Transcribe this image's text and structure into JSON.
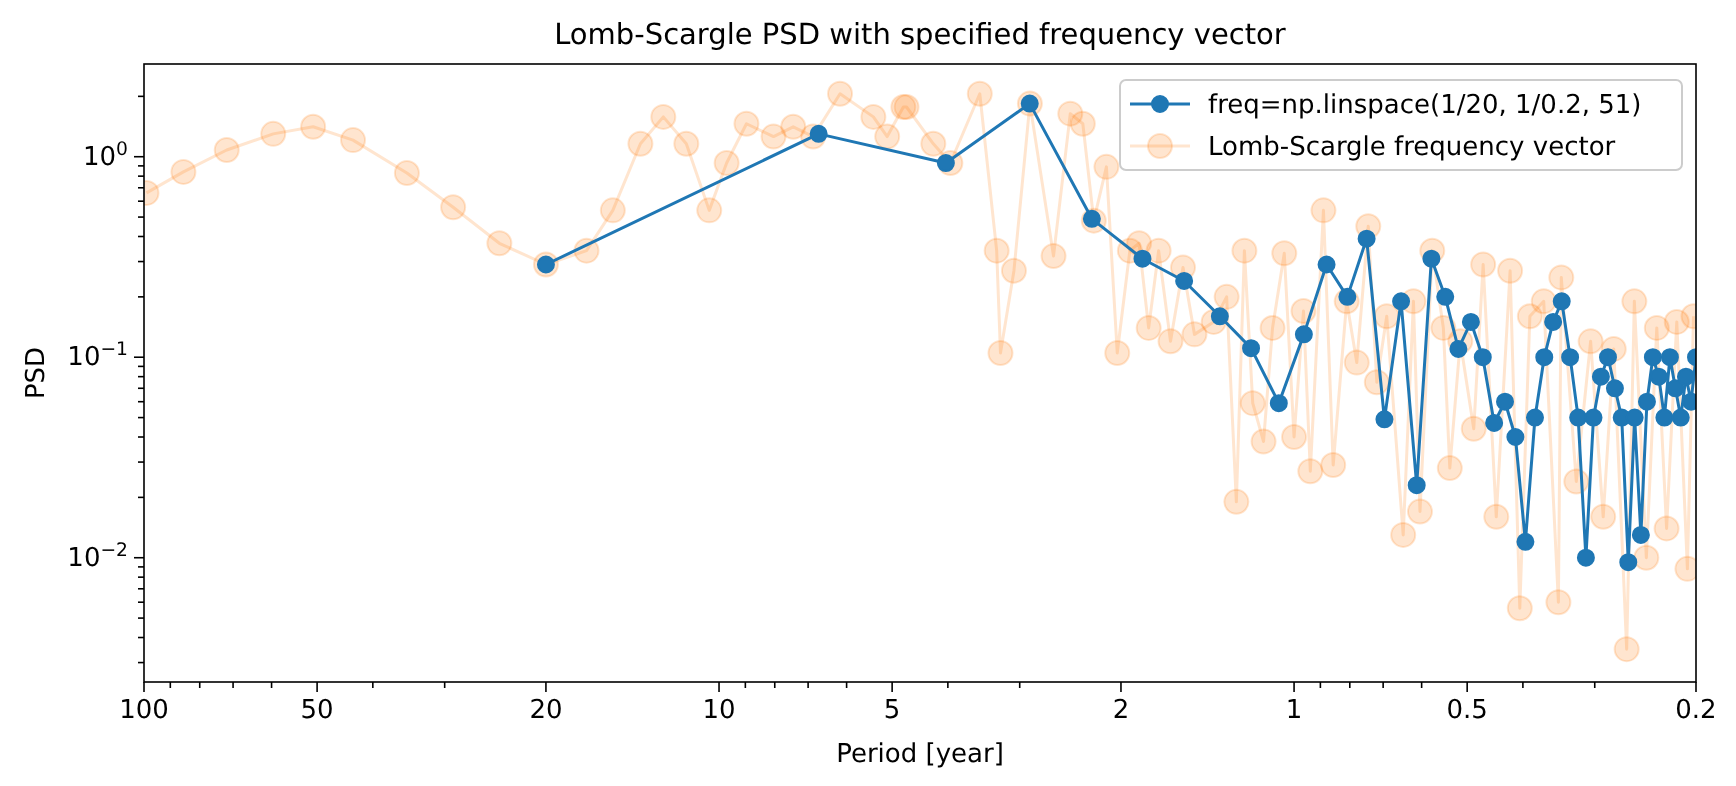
{
  "chart_data": {
    "type": "line",
    "title": "Lomb-Scargle PSD with specified frequency vector",
    "xlabel": "Period [year]",
    "ylabel": "PSD",
    "log": "xy",
    "grid": false,
    "legend": "top right",
    "marker": "circle",
    "xlim": [
      100,
      0.2
    ],
    "ylim": [
      0.0024,
      2.9
    ],
    "xticks": [
      100,
      {
        "value": 90,
        "label": null
      },
      {
        "value": 80,
        "label": null
      },
      {
        "value": 70,
        "label": null
      },
      {
        "value": 60,
        "label": null
      },
      50,
      {
        "value": 40,
        "label": null
      },
      {
        "value": 30,
        "label": null
      },
      20,
      10,
      {
        "value": 9,
        "label": null
      },
      {
        "value": 8,
        "label": null
      },
      {
        "value": 7,
        "label": null
      },
      {
        "value": 6,
        "label": null
      },
      5,
      {
        "value": 4,
        "label": null
      },
      {
        "value": 3,
        "label": null
      },
      2,
      1,
      {
        "value": 0.9,
        "label": null
      },
      {
        "value": 0.8,
        "label": null
      },
      {
        "value": 0.7,
        "label": null
      },
      {
        "value": 0.6,
        "label": null
      },
      0.5,
      {
        "value": 0.4,
        "label": null
      },
      {
        "value": 0.3,
        "label": null
      },
      0.2
    ],
    "yticks": [
      {
        "value": 0.003,
        "label": null
      },
      {
        "value": 0.004,
        "label": null
      },
      {
        "value": 0.005,
        "label": null
      },
      {
        "value": 0.006,
        "label": null
      },
      {
        "value": 0.007,
        "label": null
      },
      {
        "value": 0.008,
        "label": null
      },
      {
        "value": 0.009,
        "label": null
      },
      {
        "value": 0.01,
        "label": "10$^{−2}$"
      },
      {
        "value": 0.02,
        "label": null
      },
      {
        "value": 0.03,
        "label": null
      },
      {
        "value": 0.04,
        "label": null
      },
      {
        "value": 0.05,
        "label": null
      },
      {
        "value": 0.06,
        "label": null
      },
      {
        "value": 0.07,
        "label": null
      },
      {
        "value": 0.08,
        "label": null
      },
      {
        "value": 0.09,
        "label": null
      },
      {
        "value": 0.1,
        "label": "10$^{−1}$"
      },
      {
        "value": 0.2,
        "label": null
      },
      {
        "value": 0.3,
        "label": null
      },
      {
        "value": 0.4,
        "label": null
      },
      {
        "value": 0.5,
        "label": null
      },
      {
        "value": 0.6,
        "label": null
      },
      {
        "value": 0.7,
        "label": null
      },
      {
        "value": 0.8,
        "label": null
      },
      {
        "value": 0.9,
        "label": null
      },
      {
        "value": 1,
        "label": "10$^{0}$"
      },
      {
        "value": 2,
        "label": null
      }
    ],
    "series": [
      {
        "name": "Lomb-Scargle frequency vector",
        "color": "#ff7f0e",
        "x": [
          99,
          85.4,
          71.8,
          59.6,
          50.8,
          43.3,
          34.9,
          29,
          24.1,
          20,
          17,
          15.3,
          13.7,
          12.5,
          11.4,
          10.4,
          9.7,
          8.96,
          8.04,
          7.43,
          6.86,
          6.16,
          5.39,
          5.1,
          4.78,
          4.72,
          4.24,
          3.96,
          3.52,
          3.29,
          3.24,
          3.07,
          2.88,
          2.62,
          2.45,
          2.33,
          2.23,
          2.12,
          2.03,
          1.93,
          1.86,
          1.79,
          1.72,
          1.64,
          1.56,
          1.49,
          1.38,
          1.31,
          1.26,
          1.22,
          1.18,
          1.13,
          1.09,
          1.04,
          1.0,
          0.963,
          0.937,
          0.889,
          0.855,
          0.81,
          0.778,
          0.743,
          0.718,
          0.69,
          0.646,
          0.62,
          0.604,
          0.575,
          0.55,
          0.536,
          0.514,
          0.487,
          0.469,
          0.445,
          0.421,
          0.405,
          0.389,
          0.368,
          0.347,
          0.343,
          0.323,
          0.305,
          0.29,
          0.278,
          0.264,
          0.256,
          0.244,
          0.234,
          0.225,
          0.216,
          0.207,
          0.202
        ],
        "values": [
          0.66,
          0.84,
          1.08,
          1.3,
          1.41,
          1.21,
          0.83,
          0.56,
          0.37,
          0.29,
          0.34,
          0.54,
          1.16,
          1.58,
          1.16,
          0.54,
          0.93,
          1.46,
          1.26,
          1.41,
          1.26,
          2.06,
          1.58,
          1.26,
          1.77,
          1.77,
          1.16,
          0.93,
          2.06,
          0.34,
          0.105,
          0.27,
          1.84,
          0.32,
          1.64,
          1.46,
          0.48,
          0.89,
          0.105,
          0.34,
          0.37,
          0.14,
          0.34,
          0.12,
          0.28,
          0.13,
          0.15,
          0.2,
          0.019,
          0.34,
          0.059,
          0.038,
          0.14,
          0.33,
          0.04,
          0.17,
          0.027,
          0.54,
          0.029,
          0.19,
          0.094,
          0.45,
          0.075,
          0.16,
          0.013,
          0.19,
          0.017,
          0.34,
          0.14,
          0.028,
          0.12,
          0.044,
          0.29,
          0.016,
          0.27,
          0.0056,
          0.16,
          0.19,
          0.006,
          0.25,
          0.024,
          0.12,
          0.016,
          0.11,
          0.0035,
          0.19,
          0.01,
          0.14,
          0.014,
          0.15,
          0.0088,
          0.16
        ]
      },
      {
        "name": "freq=np.linspace(1/20, 1/0.2, 51)",
        "color": "#1f77b4",
        "x": [
          20,
          6.711,
          4.032,
          2.882,
          2.247,
          1.835,
          1.553,
          1.346,
          1.188,
          1.063,
          0.9615,
          0.878,
          0.8078,
          0.7479,
          0.6964,
          0.6515,
          0.612,
          0.577,
          0.5459,
          0.5179,
          0.4926,
          0.4697,
          0.4488,
          0.4297,
          0.4122,
          0.396,
          0.3811,
          0.3672,
          0.3544,
          0.3424,
          0.3311,
          0.3206,
          0.3108,
          0.3015,
          0.2927,
          0.2845,
          0.2767,
          0.2693,
          0.2623,
          0.2557,
          0.2494,
          0.2434,
          0.2377,
          0.2322,
          0.227,
          0.222,
          0.2172,
          0.2126,
          0.2082,
          0.204,
          0.2
        ],
        "values": [
          0.29,
          1.3,
          0.93,
          1.84,
          0.49,
          0.31,
          0.24,
          0.16,
          0.111,
          0.059,
          0.13,
          0.29,
          0.2,
          0.39,
          0.049,
          0.19,
          0.023,
          0.31,
          0.2,
          0.11,
          0.15,
          0.1,
          0.047,
          0.06,
          0.04,
          0.012,
          0.05,
          0.1,
          0.15,
          0.19,
          0.1,
          0.05,
          0.01,
          0.05,
          0.08,
          0.1,
          0.07,
          0.05,
          0.0095,
          0.05,
          0.013,
          0.06,
          0.1,
          0.08,
          0.05,
          0.1,
          0.07,
          0.05,
          0.08,
          0.06,
          0.1
        ]
      }
    ]
  }
}
